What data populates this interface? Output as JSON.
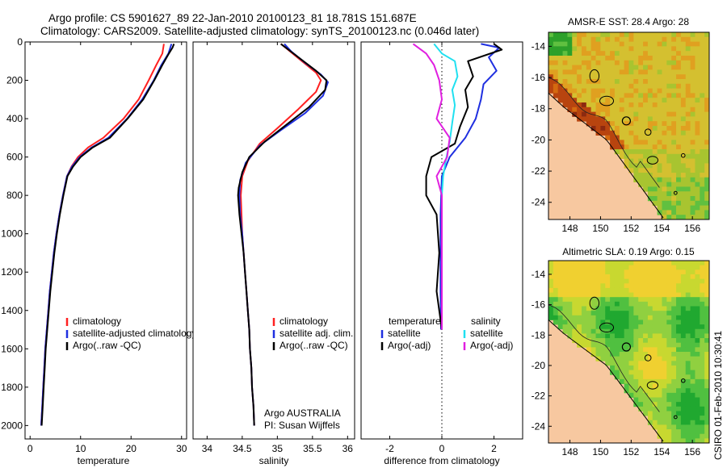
{
  "header": {
    "line1": "Argo profile: CS 5901627_89 22-Jan-2010 20100123_81 18.781S 151.687E",
    "line2": "Climatology: CARS2009. Satellite-adjusted climatology: synTS_20100123.nc (0.046d later)"
  },
  "footer": {
    "stamp": "CSIRO 01-Feb-2010 10:30:41"
  },
  "colors": {
    "climatology": "#ff2020",
    "satellite": "#1f2fe0",
    "argo": "#000000",
    "sat_salinity": "#20e0f0",
    "argo_salinity": "#e020e0",
    "land": "#f7c8a0",
    "coast": "#000000"
  },
  "chart_data": [
    {
      "id": "temperature",
      "type": "line",
      "xlabel": "temperature",
      "ylabel": "",
      "xlim": [
        -1,
        31
      ],
      "ylim": [
        2070,
        0
      ],
      "xticks": [
        0,
        10,
        20,
        30
      ],
      "yticks": [
        0,
        200,
        400,
        600,
        800,
        1000,
        1200,
        1400,
        1600,
        1800,
        2000
      ],
      "legend": {
        "placement": "lower-right",
        "entries": [
          "climatology",
          "satellite-adjusted climatology",
          "Argo(..raw -QC)"
        ]
      },
      "series": [
        {
          "name": "climatology",
          "color": "#ff2020",
          "points": [
            [
              26.5,
              10
            ],
            [
              26.2,
              60
            ],
            [
              25,
              120
            ],
            [
              23.5,
              200
            ],
            [
              21.5,
              300
            ],
            [
              18.5,
              400
            ],
            [
              14.5,
              500
            ],
            [
              11.5,
              550
            ],
            [
              9.5,
              600
            ],
            [
              8.2,
              650
            ],
            [
              7.3,
              700
            ],
            [
              6.5,
              800
            ],
            [
              5.8,
              900
            ],
            [
              5.2,
              1000
            ],
            [
              4.7,
              1100
            ],
            [
              4.3,
              1200
            ],
            [
              3.9,
              1300
            ],
            [
              3.6,
              1400
            ],
            [
              3.3,
              1500
            ],
            [
              3,
              1600
            ],
            [
              2.8,
              1700
            ],
            [
              2.6,
              1800
            ],
            [
              2.4,
              1900
            ],
            [
              2.2,
              2000
            ]
          ]
        },
        {
          "name": "satellite-adjusted climatology",
          "color": "#1f2fe0",
          "points": [
            [
              28,
              10
            ],
            [
              27.4,
              60
            ],
            [
              26,
              120
            ],
            [
              24.5,
              200
            ],
            [
              22.2,
              300
            ],
            [
              19.2,
              400
            ],
            [
              15.5,
              500
            ],
            [
              12.2,
              550
            ],
            [
              9.8,
              600
            ],
            [
              8.3,
              650
            ],
            [
              7.3,
              700
            ],
            [
              6.5,
              800
            ],
            [
              5.8,
              900
            ],
            [
              5.2,
              1000
            ],
            [
              4.7,
              1100
            ],
            [
              4.3,
              1200
            ],
            [
              3.9,
              1300
            ],
            [
              3.6,
              1400
            ],
            [
              3.3,
              1500
            ],
            [
              3,
              1600
            ],
            [
              2.8,
              1700
            ],
            [
              2.6,
              1800
            ],
            [
              2.4,
              1900
            ],
            [
              2.2,
              2000
            ]
          ]
        },
        {
          "name": "Argo(..raw -QC)",
          "color": "#000000",
          "points": [
            [
              28.5,
              10
            ],
            [
              28.2,
              30
            ],
            [
              27.5,
              60
            ],
            [
              26.2,
              120
            ],
            [
              24.6,
              200
            ],
            [
              22.4,
              300
            ],
            [
              19.3,
              400
            ],
            [
              15.8,
              500
            ],
            [
              12.4,
              550
            ],
            [
              10,
              600
            ],
            [
              8.5,
              650
            ],
            [
              7.4,
              700
            ],
            [
              6.6,
              800
            ],
            [
              5.9,
              900
            ],
            [
              5.3,
              1000
            ],
            [
              4.8,
              1100
            ],
            [
              4.4,
              1200
            ],
            [
              4,
              1300
            ],
            [
              3.7,
              1400
            ],
            [
              3.4,
              1500
            ],
            [
              3.1,
              1600
            ],
            [
              2.9,
              1700
            ],
            [
              2.7,
              1800
            ],
            [
              2.5,
              1900
            ],
            [
              2.3,
              2000
            ]
          ]
        }
      ]
    },
    {
      "id": "salinity",
      "type": "line",
      "xlabel": "salinity",
      "ylabel": "",
      "xlim": [
        33.8,
        36.1
      ],
      "ylim": [
        2070,
        0
      ],
      "xticks": [
        34,
        34.5,
        35,
        35.5,
        36
      ],
      "legend": {
        "placement": "lower-right",
        "entries": [
          "climatology",
          "satellite adj. clim.",
          "Argo(..raw -QC)"
        ]
      },
      "annotation": [
        "Argo AUSTRALIA",
        "PI: Susan Wijffels"
      ],
      "series": [
        {
          "name": "climatology",
          "color": "#ff2020",
          "points": [
            [
              35.05,
              10
            ],
            [
              35.15,
              40
            ],
            [
              35.35,
              100
            ],
            [
              35.55,
              160
            ],
            [
              35.62,
              200
            ],
            [
              35.55,
              260
            ],
            [
              35.3,
              350
            ],
            [
              35,
              450
            ],
            [
              34.75,
              530
            ],
            [
              34.58,
              620
            ],
            [
              34.5,
              700
            ],
            [
              34.48,
              800
            ],
            [
              34.49,
              900
            ],
            [
              34.5,
              1000
            ],
            [
              34.52,
              1100
            ],
            [
              34.54,
              1200
            ],
            [
              34.56,
              1300
            ],
            [
              34.58,
              1400
            ],
            [
              34.6,
              1500
            ],
            [
              34.61,
              1600
            ],
            [
              34.63,
              1700
            ],
            [
              34.64,
              1800
            ],
            [
              34.66,
              1900
            ],
            [
              34.67,
              2000
            ]
          ]
        },
        {
          "name": "satellite adj. clim.",
          "color": "#1f2fe0",
          "points": [
            [
              35.1,
              10
            ],
            [
              35.2,
              50
            ],
            [
              35.4,
              110
            ],
            [
              35.62,
              170
            ],
            [
              35.72,
              210
            ],
            [
              35.65,
              280
            ],
            [
              35.4,
              370
            ],
            [
              35.05,
              460
            ],
            [
              34.75,
              540
            ],
            [
              34.55,
              630
            ],
            [
              34.47,
              720
            ],
            [
              34.46,
              800
            ],
            [
              34.47,
              900
            ],
            [
              34.5,
              1000
            ],
            [
              34.52,
              1100
            ],
            [
              34.54,
              1200
            ],
            [
              34.56,
              1300
            ],
            [
              34.58,
              1400
            ],
            [
              34.6,
              1500
            ],
            [
              34.61,
              1600
            ],
            [
              34.63,
              1700
            ],
            [
              34.64,
              1800
            ],
            [
              34.66,
              1900
            ],
            [
              34.67,
              2000
            ]
          ]
        },
        {
          "name": "Argo(..raw -QC)",
          "color": "#000000",
          "points": [
            [
              35.05,
              10
            ],
            [
              35.12,
              30
            ],
            [
              35.3,
              80
            ],
            [
              35.55,
              150
            ],
            [
              35.7,
              200
            ],
            [
              35.68,
              250
            ],
            [
              35.45,
              340
            ],
            [
              35.1,
              440
            ],
            [
              34.82,
              520
            ],
            [
              34.6,
              600
            ],
            [
              34.5,
              680
            ],
            [
              34.45,
              760
            ],
            [
              34.44,
              800
            ],
            [
              34.46,
              900
            ],
            [
              34.49,
              1000
            ],
            [
              34.52,
              1100
            ],
            [
              34.54,
              1200
            ],
            [
              34.56,
              1300
            ],
            [
              34.58,
              1400
            ],
            [
              34.6,
              1500
            ],
            [
              34.61,
              1600
            ],
            [
              34.63,
              1700
            ],
            [
              34.64,
              1800
            ],
            [
              34.66,
              1900
            ],
            [
              34.67,
              2000
            ]
          ]
        }
      ]
    },
    {
      "id": "difference",
      "type": "line",
      "xlabel": "difference from climatology",
      "ylabel": "",
      "xlim": [
        -3.1,
        3.1
      ],
      "ylim": [
        2070,
        0
      ],
      "xticks": [
        -2,
        0,
        2
      ],
      "zero_line": true,
      "legend": {
        "placement": "lower-center",
        "entries": [
          "temperature",
          "satellite",
          "Argo(-adj)",
          "salinity",
          "satellite",
          "Argo(-adj)"
        ]
      },
      "series": [
        {
          "name": "temperature satellite",
          "color": "#1f2fe0",
          "points": [
            [
              1.5,
              10
            ],
            [
              2.2,
              30
            ],
            [
              1.8,
              80
            ],
            [
              2.1,
              150
            ],
            [
              1.6,
              220
            ],
            [
              1.5,
              300
            ],
            [
              1.3,
              400
            ],
            [
              0.9,
              500
            ],
            [
              0.3,
              600
            ],
            [
              0,
              700
            ],
            [
              -0.05,
              900
            ],
            [
              -0.05,
              1100
            ],
            [
              -0.05,
              1300
            ],
            [
              -0.03,
              1500
            ]
          ]
        },
        {
          "name": "temperature Argo(-adj)",
          "color": "#000000",
          "points": [
            [
              2,
              10
            ],
            [
              2.3,
              40
            ],
            [
              1,
              100
            ],
            [
              1.2,
              180
            ],
            [
              0.9,
              250
            ],
            [
              1,
              340
            ],
            [
              0.7,
              440
            ],
            [
              0.5,
              530
            ],
            [
              -0.4,
              600
            ],
            [
              -0.6,
              700
            ],
            [
              -0.6,
              800
            ],
            [
              -0.2,
              900
            ],
            [
              -0.1,
              1100
            ],
            [
              -0.2,
              1300
            ],
            [
              0,
              1500
            ]
          ]
        },
        {
          "name": "salinity satellite",
          "color": "#20e0f0",
          "points": [
            [
              -0.3,
              10
            ],
            [
              0,
              60
            ],
            [
              0.5,
              100
            ],
            [
              0.6,
              180
            ],
            [
              0.4,
              250
            ],
            [
              0.5,
              330
            ],
            [
              0.4,
              420
            ],
            [
              0.3,
              520
            ],
            [
              0.15,
              620
            ],
            [
              0.05,
              700
            ],
            [
              0,
              800
            ],
            [
              0,
              1000
            ],
            [
              0,
              1200
            ],
            [
              0,
              1400
            ],
            [
              0,
              1500
            ]
          ]
        },
        {
          "name": "salinity Argo(-adj)",
          "color": "#e020e0",
          "points": [
            [
              -1.1,
              10
            ],
            [
              -0.6,
              60
            ],
            [
              -0.3,
              120
            ],
            [
              -0.1,
              200
            ],
            [
              0,
              300
            ],
            [
              -0.2,
              400
            ],
            [
              0.3,
              500
            ],
            [
              0.2,
              600
            ],
            [
              -0.2,
              700
            ],
            [
              0,
              800
            ],
            [
              0,
              1000
            ],
            [
              0,
              1200
            ],
            [
              0,
              1400
            ],
            [
              0,
              1500
            ]
          ]
        }
      ]
    },
    {
      "id": "sst-map",
      "type": "heatmap",
      "title": "AMSR-E SST: 28.4 Argo: 28",
      "xlim": [
        146.6,
        157.1
      ],
      "ylim": [
        -25.1,
        -13.1
      ],
      "xticks": [
        148,
        150,
        152,
        154,
        156
      ],
      "yticks": [
        -14,
        -16,
        -18,
        -20,
        -22,
        -24
      ],
      "argo_position": [
        151.687,
        -18.781
      ],
      "palette": [
        "#8c2a10",
        "#b8440f",
        "#d46a10",
        "#e0a020",
        "#d4c030",
        "#a8c430",
        "#60c040",
        "#2da02a"
      ]
    },
    {
      "id": "sla-map",
      "type": "heatmap",
      "title": "Altimetric SLA: 0.19 Argo: 0.15",
      "xlim": [
        146.6,
        157.1
      ],
      "ylim": [
        -25.1,
        -13.1
      ],
      "xticks": [
        148,
        150,
        152,
        154,
        156
      ],
      "yticks": [
        -14,
        -16,
        -18,
        -20,
        -22,
        -24
      ],
      "argo_position": [
        151.687,
        -18.781
      ],
      "palette": [
        "#f0d030",
        "#c8d830",
        "#90d040",
        "#50c040",
        "#20a830"
      ]
    }
  ]
}
